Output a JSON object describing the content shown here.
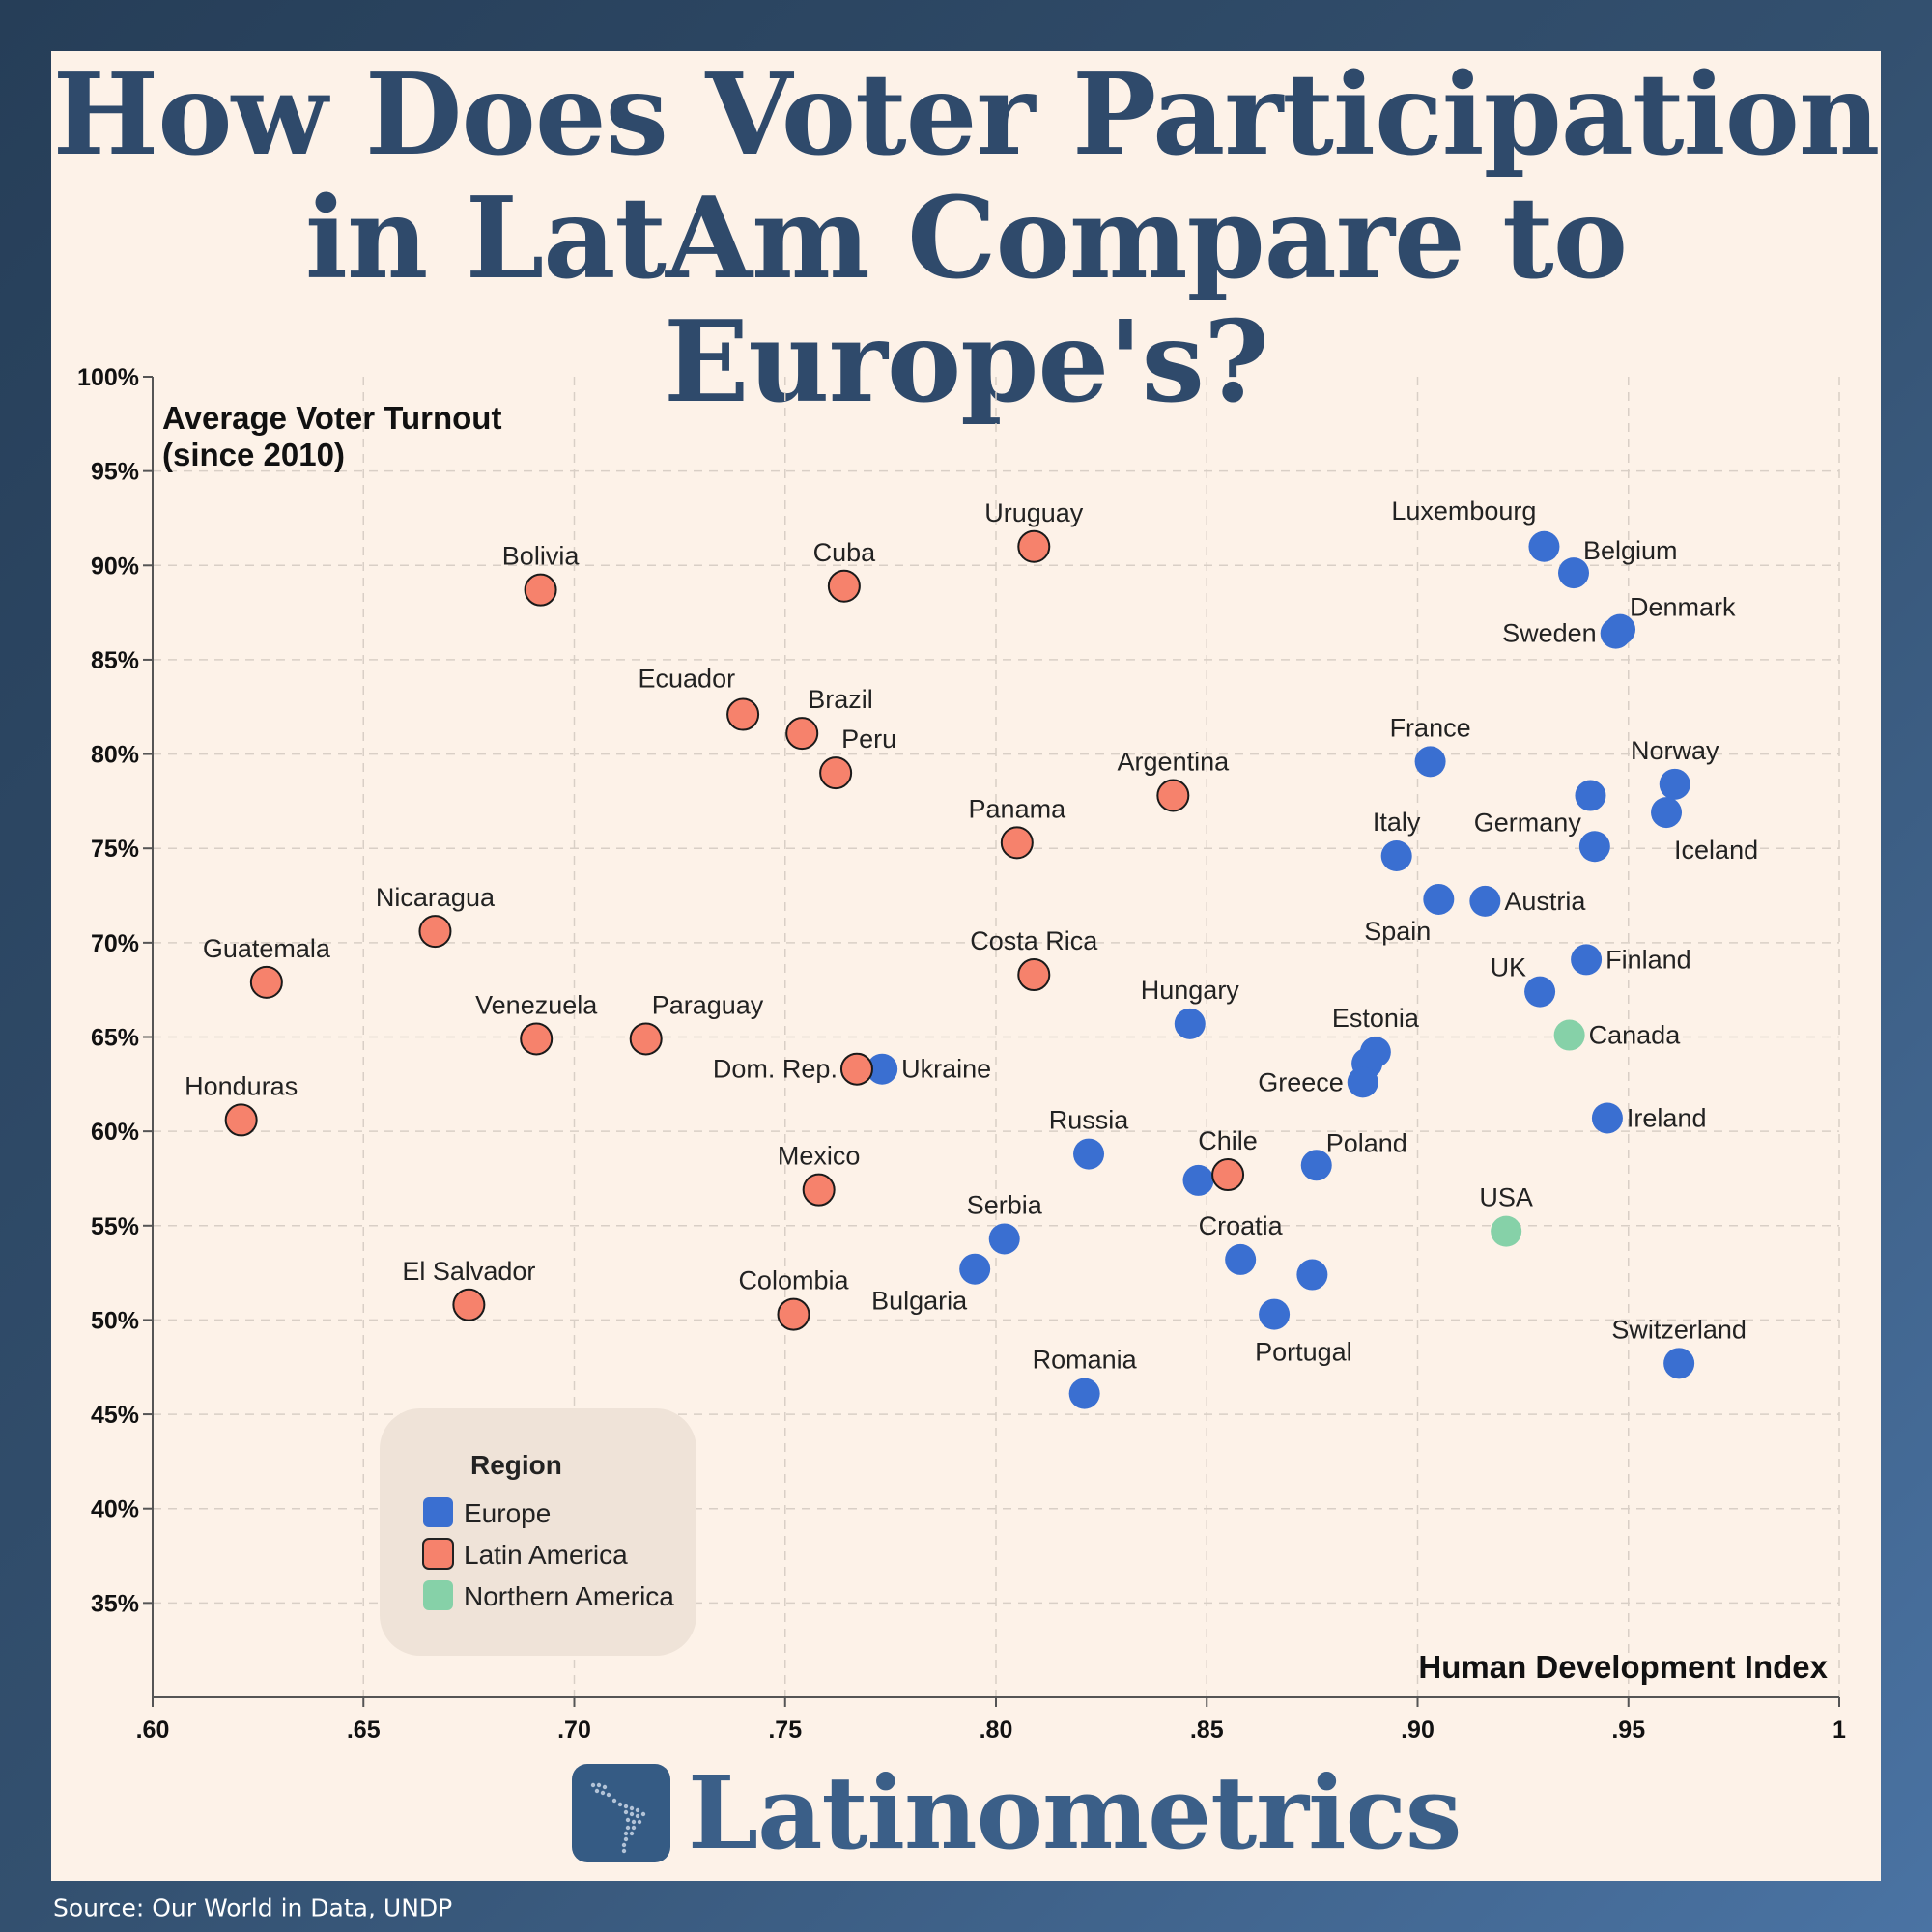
{
  "title": {
    "line1": "How Does Voter Participation",
    "line2": "in LatAm Compare to Europe's?"
  },
  "source": "Source: Our World in Data, UNDP",
  "brand": {
    "name": "Latinometrics",
    "icon": "latin-america-map-icon"
  },
  "colors": {
    "Europe": "#3a6fd1",
    "Latin America": "#f6826c",
    "Northern America": "#86d1a8",
    "title": "#2f4a6b",
    "background": "#fdf2e8"
  },
  "legend_title": "Region",
  "chart_data": {
    "type": "scatter",
    "ylabel": "Average Voter Turnout\n(since 2010)",
    "xlabel": "Human Development Index",
    "xlim": [
      0.6,
      1.0
    ],
    "ylim": [
      30,
      100
    ],
    "xticks": [
      {
        "v": 0.6,
        "label": ".60"
      },
      {
        "v": 0.65,
        "label": ".65"
      },
      {
        "v": 0.7,
        "label": ".70"
      },
      {
        "v": 0.75,
        "label": ".75"
      },
      {
        "v": 0.8,
        "label": ".80"
      },
      {
        "v": 0.85,
        "label": ".85"
      },
      {
        "v": 0.9,
        "label": ".90"
      },
      {
        "v": 0.95,
        "label": ".95"
      },
      {
        "v": 1.0,
        "label": "1"
      }
    ],
    "yticks": [
      {
        "v": 100,
        "label": "100%"
      },
      {
        "v": 95,
        "label": "95%"
      },
      {
        "v": 90,
        "label": "90%"
      },
      {
        "v": 85,
        "label": "85%"
      },
      {
        "v": 80,
        "label": "80%"
      },
      {
        "v": 75,
        "label": "75%"
      },
      {
        "v": 70,
        "label": "70%"
      },
      {
        "v": 65,
        "label": "65%"
      },
      {
        "v": 60,
        "label": "60%"
      },
      {
        "v": 55,
        "label": "55%"
      },
      {
        "v": 50,
        "label": "50%"
      },
      {
        "v": 45,
        "label": "45%"
      },
      {
        "v": 40,
        "label": "40%"
      },
      {
        "v": 35,
        "label": "35%"
      }
    ],
    "grid": true,
    "legend_position": "bottom-left",
    "series": [
      {
        "name": "Europe",
        "points": [
          {
            "label": "Luxembourg",
            "x": 0.93,
            "y": 91.0,
            "anchor": "above-left"
          },
          {
            "label": "Belgium",
            "x": 0.937,
            "y": 89.6,
            "anchor": "right-up"
          },
          {
            "label": "Denmark",
            "x": 0.948,
            "y": 86.6,
            "anchor": "right-up"
          },
          {
            "label": "Sweden",
            "x": 0.947,
            "y": 86.4,
            "anchor": "left"
          },
          {
            "label": "France",
            "x": 0.903,
            "y": 79.6,
            "anchor": "above"
          },
          {
            "label": "Norway",
            "x": 0.961,
            "y": 78.4,
            "anchor": "above"
          },
          {
            "label": "",
            "x": 0.941,
            "y": 77.8,
            "anchor": "none"
          },
          {
            "label": "Iceland",
            "x": 0.959,
            "y": 76.9,
            "anchor": "right-down"
          },
          {
            "label": "Germany",
            "x": 0.942,
            "y": 75.1,
            "anchor": "left-up"
          },
          {
            "label": "Italy",
            "x": 0.895,
            "y": 74.6,
            "anchor": "above"
          },
          {
            "label": "Spain",
            "x": 0.905,
            "y": 72.3,
            "anchor": "below-left"
          },
          {
            "label": "Austria",
            "x": 0.916,
            "y": 72.2,
            "anchor": "right"
          },
          {
            "label": "Finland",
            "x": 0.94,
            "y": 69.1,
            "anchor": "right"
          },
          {
            "label": "UK",
            "x": 0.929,
            "y": 67.4,
            "anchor": "left-up"
          },
          {
            "label": "Hungary",
            "x": 0.846,
            "y": 65.7,
            "anchor": "above"
          },
          {
            "label": "Estonia",
            "x": 0.89,
            "y": 64.2,
            "anchor": "above"
          },
          {
            "label": "",
            "x": 0.888,
            "y": 63.6,
            "anchor": "none"
          },
          {
            "label": "Ukraine",
            "x": 0.773,
            "y": 63.3,
            "anchor": "right"
          },
          {
            "label": "Greece",
            "x": 0.887,
            "y": 62.6,
            "anchor": "left"
          },
          {
            "label": "Ireland",
            "x": 0.945,
            "y": 60.7,
            "anchor": "right"
          },
          {
            "label": "Russia",
            "x": 0.822,
            "y": 58.8,
            "anchor": "above"
          },
          {
            "label": "Poland",
            "x": 0.876,
            "y": 58.2,
            "anchor": "right-up"
          },
          {
            "label": "",
            "x": 0.848,
            "y": 57.4,
            "anchor": "none"
          },
          {
            "label": "Serbia",
            "x": 0.802,
            "y": 54.3,
            "anchor": "above"
          },
          {
            "label": "Croatia",
            "x": 0.858,
            "y": 53.2,
            "anchor": "above"
          },
          {
            "label": "Bulgaria",
            "x": 0.795,
            "y": 52.7,
            "anchor": "below-left"
          },
          {
            "label": "",
            "x": 0.875,
            "y": 52.4,
            "anchor": "none"
          },
          {
            "label": "Portugal",
            "x": 0.866,
            "y": 50.3,
            "anchor": "below-right"
          },
          {
            "label": "Switzerland",
            "x": 0.962,
            "y": 47.7,
            "anchor": "above"
          },
          {
            "label": "Romania",
            "x": 0.821,
            "y": 46.1,
            "anchor": "above"
          }
        ]
      },
      {
        "name": "Latin America",
        "points": [
          {
            "label": "Uruguay",
            "x": 0.809,
            "y": 91.0,
            "anchor": "above"
          },
          {
            "label": "Cuba",
            "x": 0.764,
            "y": 88.9,
            "anchor": "above"
          },
          {
            "label": "Bolivia",
            "x": 0.692,
            "y": 88.7,
            "anchor": "above"
          },
          {
            "label": "Ecuador",
            "x": 0.74,
            "y": 82.1,
            "anchor": "above-left"
          },
          {
            "label": "Brazil",
            "x": 0.754,
            "y": 81.1,
            "anchor": "above-right"
          },
          {
            "label": "Peru",
            "x": 0.762,
            "y": 79.0,
            "anchor": "above-right"
          },
          {
            "label": "Argentina",
            "x": 0.842,
            "y": 77.8,
            "anchor": "above"
          },
          {
            "label": "Panama",
            "x": 0.805,
            "y": 75.3,
            "anchor": "above"
          },
          {
            "label": "Nicaragua",
            "x": 0.667,
            "y": 70.6,
            "anchor": "above"
          },
          {
            "label": "Costa Rica",
            "x": 0.809,
            "y": 68.3,
            "anchor": "above"
          },
          {
            "label": "Guatemala",
            "x": 0.627,
            "y": 67.9,
            "anchor": "above"
          },
          {
            "label": "Venezuela",
            "x": 0.691,
            "y": 64.9,
            "anchor": "above"
          },
          {
            "label": "Paraguay",
            "x": 0.717,
            "y": 64.9,
            "anchor": "above-right"
          },
          {
            "label": "Dom. Rep.",
            "x": 0.767,
            "y": 63.3,
            "anchor": "left"
          },
          {
            "label": "Honduras",
            "x": 0.621,
            "y": 60.6,
            "anchor": "above"
          },
          {
            "label": "Chile",
            "x": 0.855,
            "y": 57.7,
            "anchor": "above"
          },
          {
            "label": "Mexico",
            "x": 0.758,
            "y": 56.9,
            "anchor": "above"
          },
          {
            "label": "El Salvador",
            "x": 0.675,
            "y": 50.8,
            "anchor": "above"
          },
          {
            "label": "Colombia",
            "x": 0.752,
            "y": 50.3,
            "anchor": "above"
          }
        ]
      },
      {
        "name": "Northern America",
        "points": [
          {
            "label": "Canada",
            "x": 0.936,
            "y": 65.1,
            "anchor": "right"
          },
          {
            "label": "USA",
            "x": 0.921,
            "y": 54.7,
            "anchor": "above"
          }
        ]
      }
    ]
  }
}
